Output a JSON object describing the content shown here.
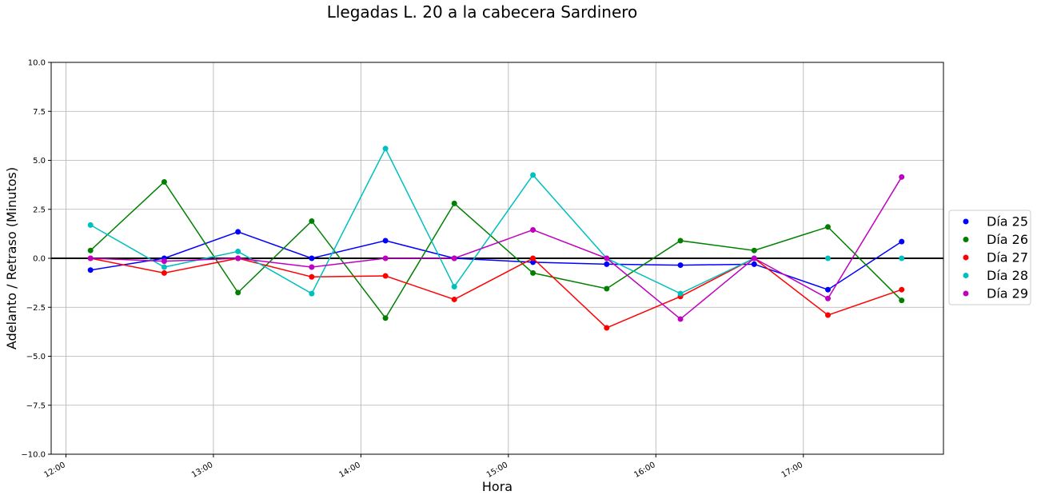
{
  "chart_data": {
    "type": "line",
    "title": "Llegadas L. 20 a la cabecera Sardinero",
    "xlabel": "Hora",
    "ylabel": "Adelanto / Retraso (Minutos)",
    "ylim": [
      -10,
      10
    ],
    "xlim": [
      "11:54",
      "17:57"
    ],
    "grid": true,
    "legend_position": "right-outside",
    "zero_line": 0,
    "xticks": [
      "12:00",
      "13:00",
      "14:00",
      "15:00",
      "16:00",
      "17:00"
    ],
    "yticks": [
      10,
      7.5,
      5,
      2.5,
      0,
      -2.5,
      -5,
      -7.5,
      -10
    ],
    "ytick_labels": [
      "10.0",
      "7.5",
      "5.0",
      "2.5",
      "0.0",
      "−2.5",
      "−5.0",
      "−7.5",
      "−10.0"
    ],
    "series": [
      {
        "name": "Día 25",
        "color": "#0000ff",
        "x": [
          "12:10",
          "12:40",
          "13:10",
          "13:40",
          "14:10",
          "14:38",
          "15:10",
          "15:40",
          "16:10",
          "16:40",
          "17:10",
          "17:40"
        ],
        "y": [
          -0.6,
          0,
          1.35,
          0,
          0.9,
          0,
          -0.2,
          -0.3,
          -0.35,
          -0.3,
          -1.6,
          0.85
        ]
      },
      {
        "name": "Día 26",
        "color": "#008000",
        "x": [
          "12:10",
          "12:40",
          "13:10",
          "13:40",
          "14:10",
          "14:38",
          "15:10",
          "15:40",
          "16:10",
          "16:40",
          "17:10",
          "17:40"
        ],
        "y": [
          0.4,
          3.9,
          -1.75,
          1.9,
          -3.05,
          2.8,
          -0.75,
          -1.55,
          0.9,
          0.4,
          1.6,
          -2.15
        ]
      },
      {
        "name": "Día 27",
        "color": "#ff0000",
        "x": [
          "12:10",
          "12:40",
          "13:10",
          "13:40",
          "14:10",
          "14:38",
          "15:10",
          "15:40",
          "16:10",
          "16:40",
          "17:10",
          "17:40"
        ],
        "y": [
          0,
          -0.75,
          0,
          -0.95,
          -0.9,
          -2.1,
          0,
          -3.55,
          -1.95,
          0,
          -2.9,
          -1.6
        ]
      },
      {
        "name": "Día 28",
        "color": "#00bfbf",
        "x": [
          "12:10",
          "12:40",
          "13:10",
          "13:40",
          "14:10",
          "14:38",
          "15:10",
          "15:40",
          "16:10",
          "16:40",
          "17:10",
          "17:40"
        ],
        "y": [
          1.7,
          -0.45,
          0.35,
          -1.8,
          5.6,
          -1.45,
          4.25,
          0,
          -1.8,
          0,
          0,
          0
        ],
        "markers_only_from": 10
      },
      {
        "name": "Día 29",
        "color": "#bf00bf",
        "x": [
          "12:10",
          "12:40",
          "13:10",
          "13:40",
          "14:10",
          "14:38",
          "15:10",
          "15:40",
          "16:10",
          "16:40",
          "17:10",
          "17:40"
        ],
        "y": [
          0,
          -0.15,
          0,
          -0.45,
          0,
          0,
          1.45,
          0,
          -3.1,
          0,
          -2.05,
          4.15
        ]
      }
    ]
  }
}
